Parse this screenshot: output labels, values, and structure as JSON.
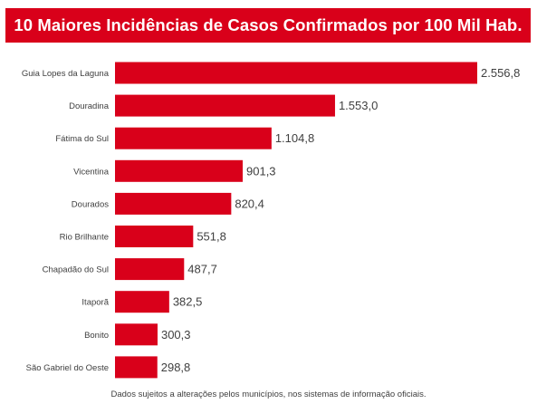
{
  "colors": {
    "accent": "#D9001A",
    "text": "#404040",
    "background": "#FFFFFF"
  },
  "chart_data": {
    "type": "bar",
    "orientation": "horizontal",
    "title": "10 Maiores Incidências de Casos Confirmados por 100 Mil Hab.",
    "categories": [
      "Guia Lopes da Laguna",
      "Douradina",
      "Fátima do Sul",
      "Vicentina",
      "Dourados",
      "Rio Brilhante",
      "Chapadão do Sul",
      "Itaporã",
      "Bonito",
      "São Gabriel do Oeste"
    ],
    "values": [
      2556.8,
      1553.0,
      1104.8,
      901.3,
      820.4,
      551.8,
      487.7,
      382.5,
      300.3,
      298.8
    ],
    "value_labels": [
      "2.556,8",
      "1.553,0",
      "1.104,8",
      "901,3",
      "820,4",
      "551,8",
      "487,7",
      "382,5",
      "300,3",
      "298,8"
    ],
    "xlim": [
      0,
      2556.8
    ],
    "grid": false
  },
  "footnote": "Dados sujeitos a alterações pelos municípios, nos sistemas de informação oficiais."
}
